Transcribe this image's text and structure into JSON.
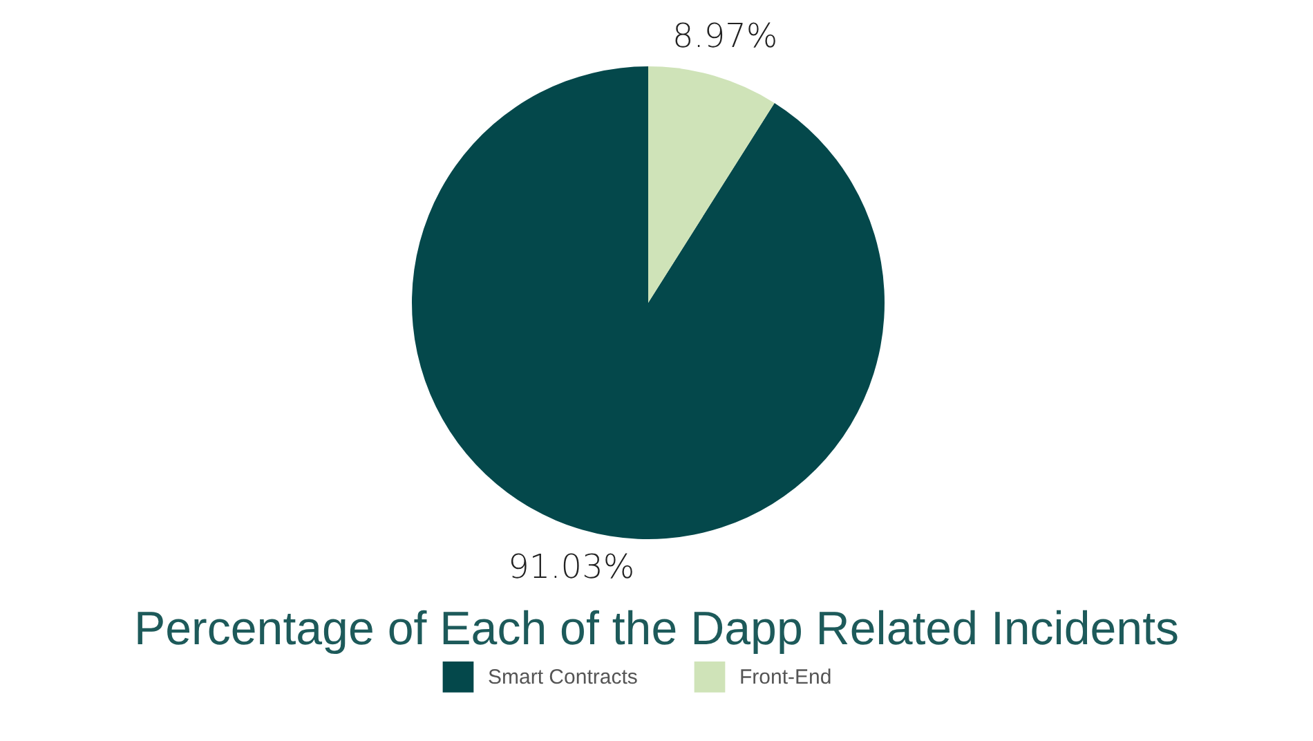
{
  "chart_data": {
    "type": "pie",
    "title": "Percentage of Each of the Dapp Related Incidents",
    "categories": [
      "Smart Contracts",
      "Front-End"
    ],
    "values": [
      91.03,
      8.97
    ],
    "value_labels": [
      "91.03%",
      "8.97%"
    ],
    "colors": [
      "#04484b",
      "#cfe3b8"
    ],
    "legend": "bottom"
  }
}
